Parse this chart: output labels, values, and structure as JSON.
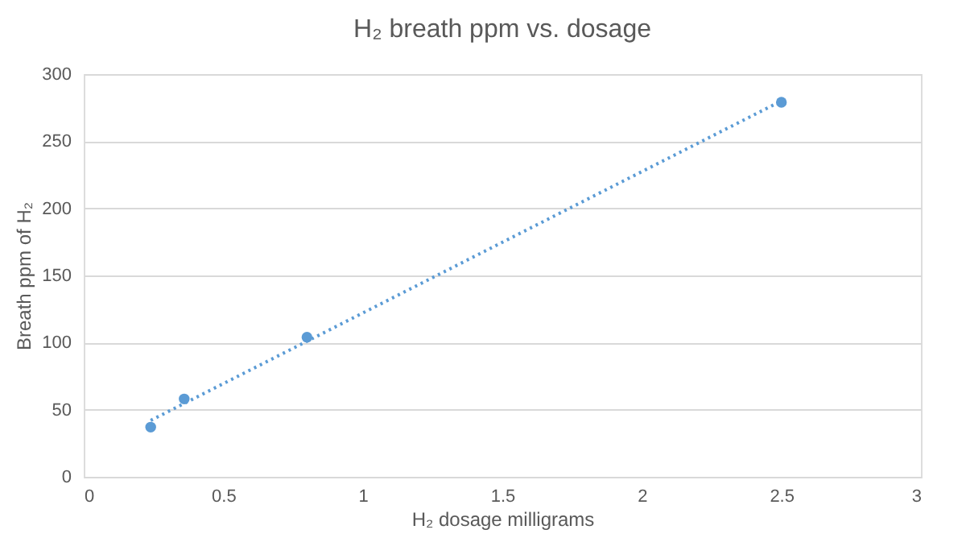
{
  "chart_data": {
    "type": "scatter",
    "title": "H₂ breath ppm vs. dosage",
    "xlabel": "H₂ dosage milligrams",
    "ylabel": "Breath ppm of H₂",
    "series": [
      {
        "color": "#5b9bd5",
        "x": [
          0.24,
          0.36,
          0.8,
          2.5
        ],
        "values": [
          37,
          58,
          104,
          279
        ],
        "marker": "circle"
      },
      {
        "type": "line",
        "color": "#5b9bd5",
        "x": [
          0.24,
          2.5
        ],
        "values": [
          42,
          280
        ],
        "line_style": "dotted",
        "marker": "none"
      }
    ],
    "xlim": [
      0,
      3
    ],
    "xticks": [
      0,
      0.5,
      1,
      1.5,
      2,
      2.5,
      3
    ],
    "ylim": [
      0,
      300
    ],
    "yticks": [
      0,
      50,
      100,
      150,
      200,
      250,
      300
    ],
    "grid": "y"
  }
}
